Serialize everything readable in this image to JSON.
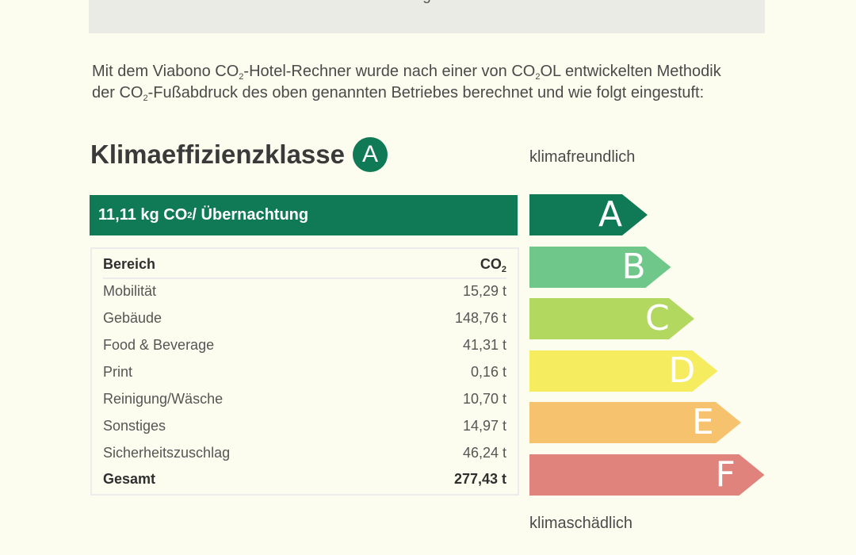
{
  "header": {
    "cut_text": "g"
  },
  "intro": {
    "line1_a": "Mit dem Viabono CO",
    "line1_sub1": "2",
    "line1_b": "-Hotel-Rechner wurde nach einer von CO",
    "line1_sub2": "2",
    "line1_c": "OL entwickelten Methodik",
    "line2_a": "der CO",
    "line2_sub": "2",
    "line2_b": "-Fußabdruck des oben genannten Betriebes berechnet und wie folgt eingestuft:"
  },
  "klasse": {
    "title": "Klimaeffizienzklasse",
    "badge": "A"
  },
  "result": {
    "prefix": "11,11 kg CO",
    "sub": "2",
    "suffix": " / Übernachtung"
  },
  "table": {
    "header_label": "Bereich",
    "header_value": "CO",
    "header_value_sub": "2",
    "rows": [
      {
        "label": "Mobilität",
        "value": "15,29 t"
      },
      {
        "label": "Gebäude",
        "value": "148,76 t"
      },
      {
        "label": "Food & Beverage",
        "value": "41,31 t"
      },
      {
        "label": "Print",
        "value": "0,16 t"
      },
      {
        "label": "Reinigung/Wäsche",
        "value": "10,70 t"
      },
      {
        "label": "Sonstiges",
        "value": "14,97 t"
      },
      {
        "label": "Sicherheitszuschlag",
        "value": "46,24 t"
      }
    ],
    "total_label": "Gesamt",
    "total_value": "277,43 t"
  },
  "scale": {
    "top_label": "klimafreundlich",
    "bottom_label": "klimaschädlich",
    "classes": [
      {
        "letter": "A",
        "color": "#0f7a55"
      },
      {
        "letter": "B",
        "color": "#6fc78a"
      },
      {
        "letter": "C",
        "color": "#b3d85f"
      },
      {
        "letter": "D",
        "color": "#f6ec60"
      },
      {
        "letter": "E",
        "color": "#f6c26e"
      },
      {
        "letter": "F",
        "color": "#e0837c"
      }
    ]
  }
}
